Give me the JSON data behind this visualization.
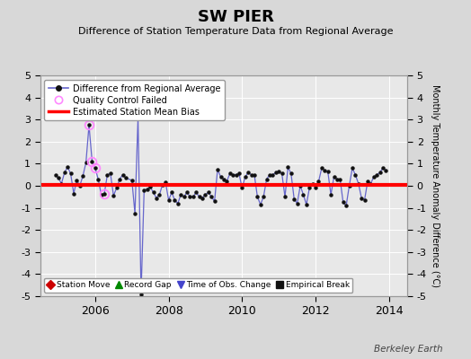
{
  "title": "SW PIER",
  "subtitle": "Difference of Station Temperature Data from Regional Average",
  "ylabel_right": "Monthly Temperature Anomaly Difference (°C)",
  "watermark": "Berkeley Earth",
  "ylim": [
    -5,
    5
  ],
  "xlim": [
    2004.5,
    2014.5
  ],
  "yticks": [
    -5,
    -4,
    -3,
    -2,
    -1,
    0,
    1,
    2,
    3,
    4,
    5
  ],
  "xticks": [
    2006,
    2008,
    2010,
    2012,
    2014
  ],
  "bg_color": "#d8d8d8",
  "plot_bg_color": "#e8e8e8",
  "grid_color": "#ffffff",
  "bias_line_value": 0.05,
  "bias_line_color": "#ff0000",
  "data_line_color": "#6666cc",
  "data_marker_color": "#111111",
  "qc_marker_color": "#ff88ff",
  "time_series": [
    [
      2004.917,
      0.5
    ],
    [
      2005.0,
      0.35
    ],
    [
      2005.083,
      0.1
    ],
    [
      2005.167,
      0.6
    ],
    [
      2005.25,
      0.85
    ],
    [
      2005.333,
      0.55
    ],
    [
      2005.417,
      -0.35
    ],
    [
      2005.5,
      0.25
    ],
    [
      2005.583,
      0.0
    ],
    [
      2005.667,
      0.45
    ],
    [
      2005.75,
      1.05
    ],
    [
      2005.833,
      2.75
    ],
    [
      2005.917,
      1.1
    ],
    [
      2006.0,
      0.8
    ],
    [
      2006.083,
      0.3
    ],
    [
      2006.167,
      -0.4
    ],
    [
      2006.25,
      -0.35
    ],
    [
      2006.333,
      0.5
    ],
    [
      2006.417,
      0.55
    ],
    [
      2006.5,
      -0.45
    ],
    [
      2006.583,
      -0.1
    ],
    [
      2006.667,
      0.3
    ],
    [
      2006.75,
      0.5
    ],
    [
      2006.833,
      0.35
    ],
    [
      2007.0,
      0.25
    ],
    [
      2007.083,
      -1.25
    ],
    [
      2007.167,
      3.1
    ],
    [
      2007.25,
      -4.9
    ],
    [
      2007.333,
      -0.2
    ],
    [
      2007.417,
      -0.15
    ],
    [
      2007.5,
      -0.05
    ],
    [
      2007.583,
      -0.3
    ],
    [
      2007.667,
      -0.55
    ],
    [
      2007.75,
      -0.4
    ],
    [
      2007.833,
      0.05
    ],
    [
      2007.917,
      0.15
    ],
    [
      2008.0,
      -0.65
    ],
    [
      2008.083,
      -0.3
    ],
    [
      2008.167,
      -0.65
    ],
    [
      2008.25,
      -0.8
    ],
    [
      2008.333,
      -0.4
    ],
    [
      2008.417,
      -0.5
    ],
    [
      2008.5,
      -0.3
    ],
    [
      2008.583,
      -0.5
    ],
    [
      2008.667,
      -0.5
    ],
    [
      2008.75,
      -0.3
    ],
    [
      2008.833,
      -0.5
    ],
    [
      2008.917,
      -0.55
    ],
    [
      2009.0,
      -0.4
    ],
    [
      2009.083,
      -0.3
    ],
    [
      2009.167,
      -0.5
    ],
    [
      2009.25,
      -0.7
    ],
    [
      2009.333,
      0.75
    ],
    [
      2009.417,
      0.4
    ],
    [
      2009.5,
      0.3
    ],
    [
      2009.583,
      0.2
    ],
    [
      2009.667,
      0.55
    ],
    [
      2009.75,
      0.5
    ],
    [
      2009.833,
      0.5
    ],
    [
      2009.917,
      0.55
    ],
    [
      2010.0,
      -0.1
    ],
    [
      2010.083,
      0.4
    ],
    [
      2010.167,
      0.6
    ],
    [
      2010.25,
      0.5
    ],
    [
      2010.333,
      0.5
    ],
    [
      2010.417,
      -0.5
    ],
    [
      2010.5,
      -0.85
    ],
    [
      2010.583,
      -0.5
    ],
    [
      2010.667,
      0.3
    ],
    [
      2010.75,
      0.5
    ],
    [
      2010.833,
      0.5
    ],
    [
      2010.917,
      0.6
    ],
    [
      2011.0,
      0.65
    ],
    [
      2011.083,
      0.55
    ],
    [
      2011.167,
      -0.5
    ],
    [
      2011.25,
      0.85
    ],
    [
      2011.333,
      0.55
    ],
    [
      2011.417,
      -0.6
    ],
    [
      2011.5,
      -0.8
    ],
    [
      2011.583,
      0.0
    ],
    [
      2011.667,
      -0.4
    ],
    [
      2011.75,
      -0.85
    ],
    [
      2011.833,
      -0.1
    ],
    [
      2011.917,
      0.1
    ],
    [
      2012.0,
      -0.1
    ],
    [
      2012.083,
      0.2
    ],
    [
      2012.167,
      0.8
    ],
    [
      2012.25,
      0.7
    ],
    [
      2012.333,
      0.65
    ],
    [
      2012.417,
      -0.4
    ],
    [
      2012.5,
      0.4
    ],
    [
      2012.583,
      0.3
    ],
    [
      2012.667,
      0.3
    ],
    [
      2012.75,
      -0.75
    ],
    [
      2012.833,
      -0.9
    ],
    [
      2012.917,
      0.0
    ],
    [
      2013.0,
      0.8
    ],
    [
      2013.083,
      0.5
    ],
    [
      2013.167,
      0.1
    ],
    [
      2013.25,
      -0.55
    ],
    [
      2013.333,
      -0.65
    ],
    [
      2013.417,
      0.2
    ],
    [
      2013.5,
      0.1
    ],
    [
      2013.583,
      0.4
    ],
    [
      2013.667,
      0.5
    ],
    [
      2013.75,
      0.6
    ],
    [
      2013.833,
      0.8
    ],
    [
      2013.917,
      0.7
    ]
  ],
  "qc_failed_points": [
    [
      2005.833,
      2.75
    ],
    [
      2005.917,
      1.1
    ],
    [
      2006.0,
      0.8
    ],
    [
      2006.25,
      -0.35
    ]
  ],
  "legend_items": [
    {
      "label": "Difference from Regional Average",
      "color": "#6666cc",
      "type": "line_marker"
    },
    {
      "label": "Quality Control Failed",
      "color": "#ff88ff",
      "type": "circle_open"
    },
    {
      "label": "Estimated Station Mean Bias",
      "color": "#ff0000",
      "type": "line"
    }
  ],
  "bottom_legend": [
    {
      "label": "Station Move",
      "color": "#cc0000",
      "marker": "D"
    },
    {
      "label": "Record Gap",
      "color": "#008800",
      "marker": "^"
    },
    {
      "label": "Time of Obs. Change",
      "color": "#4444cc",
      "marker": "v"
    },
    {
      "label": "Empirical Break",
      "color": "#111111",
      "marker": "s"
    }
  ]
}
